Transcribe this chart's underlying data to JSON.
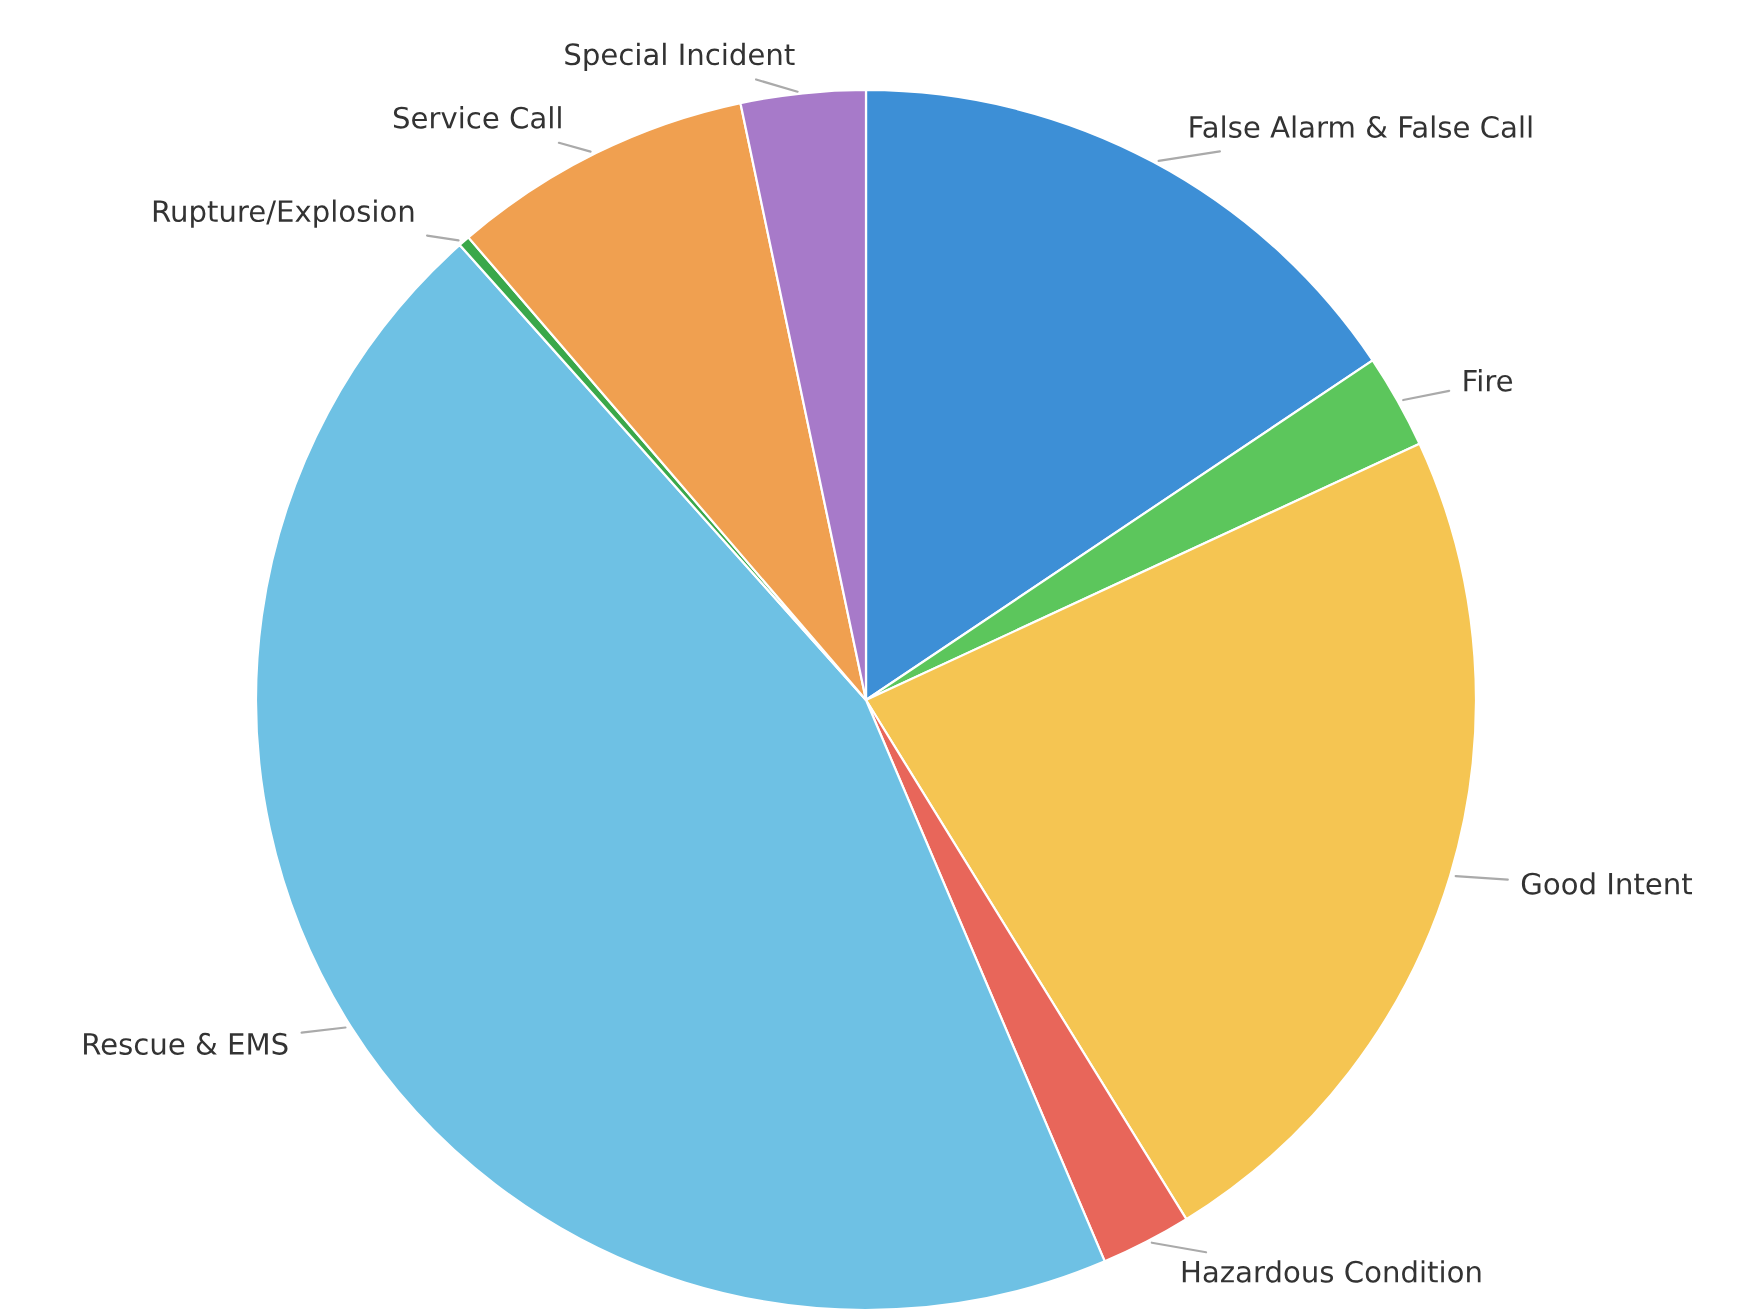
{
  "chart_data": {
    "type": "pie",
    "categories": [
      "False Alarm & False Call",
      "Fire",
      "Good Intent",
      "Hazardous Condition",
      "Rescue & EMS",
      "Rupture/Explosion",
      "Service Call",
      "Special Incident"
    ],
    "values": [
      15.6,
      2.5,
      23.1,
      2.4,
      44.8,
      0.3,
      8.0,
      3.3
    ],
    "colors": [
      "#3d8fd6",
      "#5cc65c",
      "#f5c552",
      "#e8665a",
      "#6ec1e4",
      "#3aa84a",
      "#f0a050",
      "#a77ac9"
    ]
  }
}
